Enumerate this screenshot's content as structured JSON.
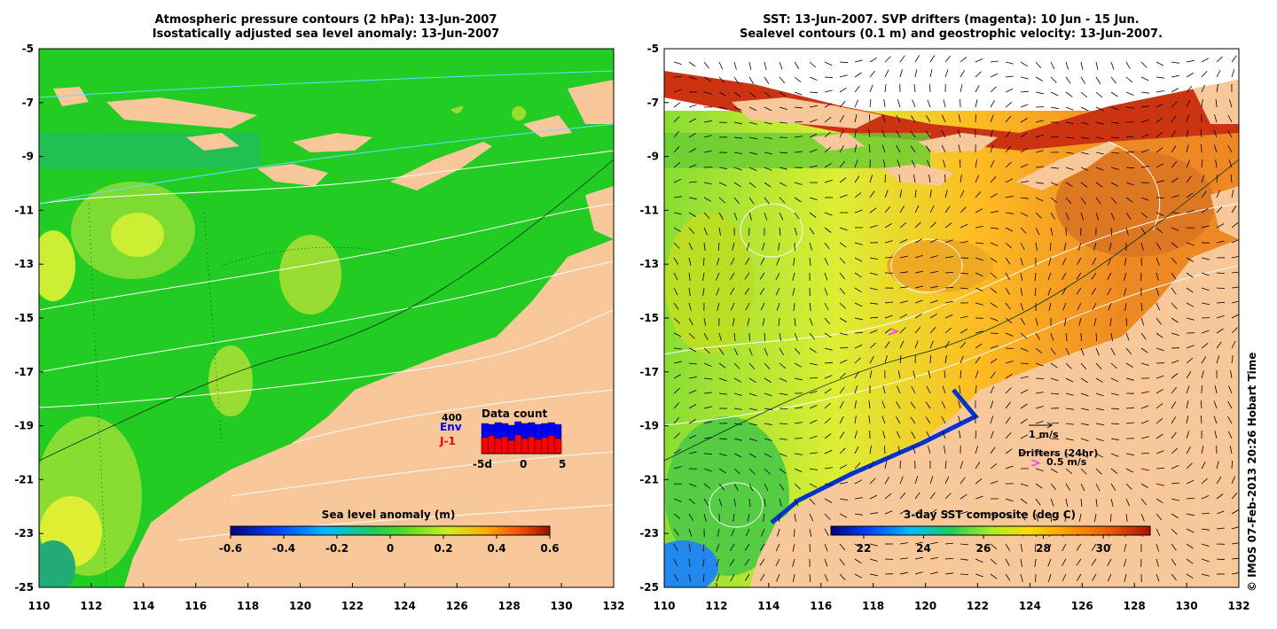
{
  "left_panel": {
    "title_line1": "Atmospheric pressure contours (2 hPa): 13-Jun-2007",
    "title_line2": "Isostatically adjusted sea level anomaly: 13-Jun-2007",
    "colorbar_title": "Sea level anomaly (m)",
    "colorbar_ticks": [
      "-0.6",
      "-0.4",
      "-0.2",
      "0",
      "0.2",
      "0.4",
      "0.6"
    ],
    "inset": {
      "title": "Data count",
      "max_label": "400",
      "series": [
        {
          "name": "Env",
          "color": "#0000ff"
        },
        {
          "name": "J-1",
          "color": "#ff0000"
        }
      ],
      "x_ticks": [
        "-5d",
        "0",
        "5"
      ]
    }
  },
  "right_panel": {
    "title_line1": "SST: 13-Jun-2007. SVP drifters (magenta): 10 Jun - 15 Jun.",
    "title_line2": "Sealevel contours (0.1 m) and geostrophic velocity: 13-Jun-2007.",
    "colorbar_title": "3-day SST composite (deg C)",
    "colorbar_ticks": [
      "22",
      "24",
      "26",
      "28",
      "30"
    ],
    "velocity_key": "1 m/s",
    "drifters_title": "Drifters (24hr)",
    "drifters_key": "0.5 m/s",
    "drifter_color": "#ff33ff"
  },
  "axes": {
    "y_ticks": [
      "-5",
      "-7",
      "-9",
      "-11",
      "-13",
      "-15",
      "-17",
      "-19",
      "-21",
      "-23",
      "-25"
    ],
    "x_ticks": [
      "110",
      "112",
      "114",
      "116",
      "118",
      "120",
      "122",
      "124",
      "126",
      "128",
      "130",
      "132"
    ]
  },
  "copyright": "© IMOS 07-Feb-2013 20:26 Hobart Time",
  "colors": {
    "land": "#f9c89a",
    "sla_ocean": "#22cc22",
    "sst_ocean": "#ee8822"
  }
}
